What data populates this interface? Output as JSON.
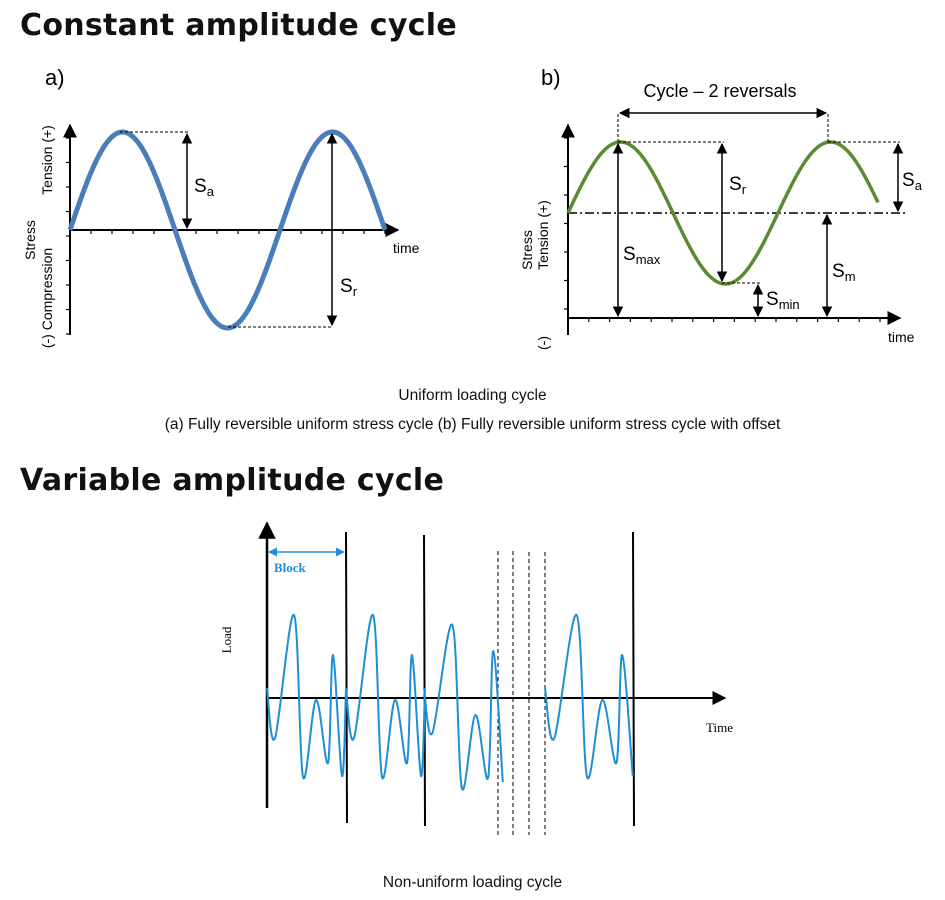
{
  "section1": {
    "title": "Constant amplitude cycle",
    "panel_a": {
      "label": "a)",
      "y_label_stress": "Stress",
      "y_label_tension": "Tension (+)",
      "y_label_compression": "(-) Compression",
      "x_label": "time",
      "sa_symbol": "S",
      "sa_sub": "a",
      "sr_symbol": "S",
      "sr_sub": "r",
      "color": "#4a7ebb"
    },
    "panel_b": {
      "label": "b)",
      "cycle_label": "Cycle – 2 reversals",
      "y_label_stress": "Stress",
      "y_label_tension": "Tension (+)",
      "y_label_negative": "(-)",
      "x_label": "time",
      "sr_symbol": "S",
      "sr_sub": "r",
      "sa_symbol": "S",
      "sa_sub": "a",
      "smax_symbol": "S",
      "smax_sub": "max",
      "sm_symbol": "S",
      "sm_sub": "m",
      "smin_symbol": "S",
      "smin_sub": "min",
      "color": "#5a8a32"
    },
    "caption_title": "Uniform loading cycle",
    "caption_text": "(a) Fully reversible uniform stress cycle (b) Fully reversible uniform stress cycle with offset"
  },
  "section2": {
    "title": "Variable amplitude cycle",
    "y_label": "Load",
    "x_label": "Time",
    "block_label": "Block",
    "color": "#1e8fd6",
    "caption": "Non-uniform loading cycle"
  }
}
